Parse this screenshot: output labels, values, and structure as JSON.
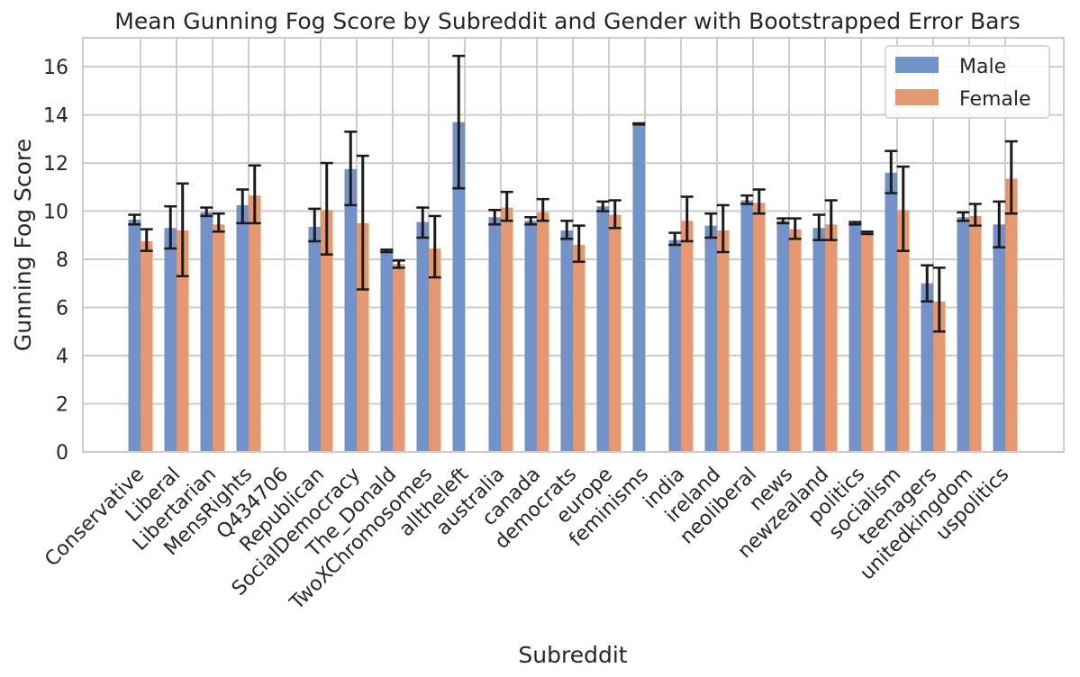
{
  "chart_data": {
    "type": "bar",
    "title": "Mean Gunning Fog Score by Subreddit and Gender with Bootstrapped Error Bars",
    "xlabel": "Subreddit",
    "ylabel": "Gunning Fog Score",
    "ylim": [
      0,
      17.2
    ],
    "yticks": [
      0,
      2,
      4,
      6,
      8,
      10,
      12,
      14,
      16
    ],
    "grid": true,
    "legend_position": "top-right",
    "categories": [
      "Conservative",
      "Liberal",
      "Libertarian",
      "MensRights",
      "Q434706",
      "Republican",
      "SocialDemocracy",
      "The_Donald",
      "TwoXChromosomes",
      "alltheleft",
      "australia",
      "canada",
      "democrats",
      "europe",
      "feminisms",
      "india",
      "ireland",
      "neoliberal",
      "news",
      "newzealand",
      "politics",
      "socialism",
      "teenagers",
      "unitedkingdom",
      "uspolitics"
    ],
    "series": [
      {
        "name": "Male",
        "color": "#6a8cc6",
        "values": [
          9.65,
          9.3,
          9.95,
          10.25,
          null,
          9.35,
          11.75,
          8.35,
          9.55,
          13.7,
          9.75,
          9.6,
          9.2,
          10.2,
          13.6,
          8.8,
          9.4,
          10.45,
          9.6,
          9.3,
          9.5,
          11.6,
          7.0,
          9.75,
          9.45
        ],
        "err_low": [
          9.45,
          8.45,
          9.8,
          9.5,
          null,
          8.75,
          10.25,
          8.3,
          8.9,
          10.95,
          9.45,
          9.45,
          8.85,
          10.0,
          13.6,
          8.6,
          8.9,
          10.3,
          9.5,
          8.8,
          9.45,
          10.75,
          6.25,
          9.6,
          8.5
        ],
        "err_high": [
          9.85,
          10.2,
          10.15,
          10.9,
          null,
          10.1,
          13.3,
          8.4,
          10.15,
          16.45,
          10.05,
          9.75,
          9.6,
          10.4,
          13.65,
          9.1,
          9.9,
          10.65,
          9.7,
          9.85,
          9.55,
          12.5,
          7.75,
          9.95,
          10.4
        ]
      },
      {
        "name": "Female",
        "color": "#e1956b",
        "values": [
          8.75,
          9.2,
          9.45,
          10.65,
          null,
          10.05,
          9.5,
          7.8,
          8.45,
          null,
          10.15,
          9.95,
          8.6,
          9.85,
          null,
          9.6,
          9.2,
          10.35,
          9.25,
          9.45,
          9.1,
          10.05,
          6.25,
          9.8,
          11.35
        ],
        "err_low": [
          8.35,
          7.3,
          9.15,
          9.5,
          null,
          8.2,
          6.75,
          7.65,
          7.25,
          null,
          9.6,
          9.6,
          7.9,
          9.3,
          null,
          8.75,
          8.3,
          9.9,
          8.85,
          8.8,
          9.05,
          8.35,
          5.0,
          9.4,
          9.9
        ],
        "err_high": [
          9.25,
          11.15,
          9.9,
          11.9,
          null,
          12.0,
          12.3,
          7.95,
          9.8,
          null,
          10.8,
          10.5,
          9.4,
          10.45,
          null,
          10.6,
          10.25,
          10.9,
          9.7,
          10.45,
          9.15,
          11.85,
          7.65,
          10.3,
          12.9
        ]
      }
    ]
  }
}
